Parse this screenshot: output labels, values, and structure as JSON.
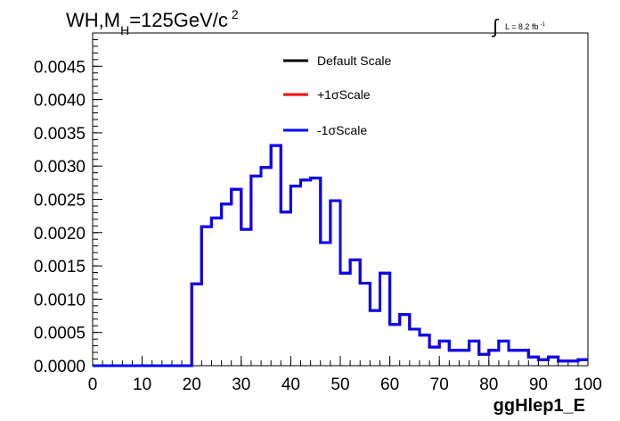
{
  "chart_data": {
    "type": "line",
    "title": "WH,M_H=125GeV/c^2",
    "title_parts": {
      "main": "WH,M",
      "sub": "H",
      "rest": "=125GeV/c",
      "sup": "2"
    },
    "lumi_label": {
      "integral": "∫",
      "text": "L = 8.2 fb",
      "sup": "-1"
    },
    "xlabel": "ggHlep1_E",
    "ylabel": "",
    "xlim": [
      0,
      100
    ],
    "ylim": [
      0,
      0.005
    ],
    "x_ticks": [
      0,
      10,
      20,
      30,
      40,
      50,
      60,
      70,
      80,
      90,
      100
    ],
    "y_ticks": [
      0.0,
      0.0005,
      0.001,
      0.0015,
      0.002,
      0.0025,
      0.003,
      0.0035,
      0.004,
      0.0045
    ],
    "y_tick_labels": [
      "0.0000",
      "0.0005",
      "0.0010",
      "0.0015",
      "0.0020",
      "0.0025",
      "0.0030",
      "0.0035",
      "0.0040",
      "0.0045"
    ],
    "grid": false,
    "legend_position": "top-center",
    "bin_edges": [
      0,
      2,
      4,
      6,
      8,
      10,
      12,
      14,
      16,
      18,
      20,
      22,
      24,
      26,
      28,
      30,
      32,
      34,
      36,
      38,
      40,
      42,
      44,
      46,
      48,
      50,
      52,
      54,
      56,
      58,
      60,
      62,
      64,
      66,
      68,
      70,
      72,
      74,
      76,
      78,
      80,
      82,
      84,
      86,
      88,
      90,
      92,
      94,
      96,
      98,
      100
    ],
    "series": [
      {
        "name": "Default Scale",
        "color": "#000000",
        "values": [
          0,
          0,
          0,
          0,
          0,
          0,
          0,
          0,
          0,
          0,
          0.00123,
          0.00209,
          0.00222,
          0.00243,
          0.00265,
          0.00205,
          0.00285,
          0.00298,
          0.00331,
          0.00231,
          0.0027,
          0.00279,
          0.00282,
          0.00185,
          0.00248,
          0.00139,
          0.00159,
          0.00124,
          0.00083,
          0.00139,
          0.00062,
          0.00077,
          0.00055,
          0.00046,
          0.00028,
          0.00037,
          0.00023,
          0.00023,
          0.00037,
          0.00017,
          0.00023,
          0.00037,
          0.00023,
          0.00023,
          0.00013,
          9e-05,
          0.00013,
          7e-05,
          7e-05,
          9e-05
        ]
      },
      {
        "name": "+1σScale",
        "color": "#ff0000",
        "values": [
          0,
          0,
          0,
          0,
          0,
          0,
          0,
          0,
          0,
          0,
          0.00123,
          0.00209,
          0.00222,
          0.00243,
          0.00265,
          0.00205,
          0.00285,
          0.00298,
          0.00331,
          0.00231,
          0.0027,
          0.00279,
          0.00282,
          0.00185,
          0.00248,
          0.00139,
          0.00159,
          0.00124,
          0.00083,
          0.00139,
          0.00062,
          0.00077,
          0.00055,
          0.00046,
          0.00028,
          0.00037,
          0.00023,
          0.00023,
          0.00037,
          0.00017,
          0.00023,
          0.00037,
          0.00023,
          0.00023,
          0.00013,
          9e-05,
          0.00013,
          7e-05,
          7e-05,
          9e-05
        ]
      },
      {
        "name": "-1σScale",
        "color": "#0000ff",
        "values": [
          0,
          0,
          0,
          0,
          0,
          0,
          0,
          0,
          0,
          0,
          0.00123,
          0.00209,
          0.00222,
          0.00243,
          0.00265,
          0.00205,
          0.00285,
          0.00298,
          0.00331,
          0.00231,
          0.0027,
          0.00279,
          0.00282,
          0.00185,
          0.00248,
          0.00139,
          0.00159,
          0.00124,
          0.00083,
          0.00139,
          0.00062,
          0.00077,
          0.00055,
          0.00046,
          0.00028,
          0.00037,
          0.00023,
          0.00023,
          0.00037,
          0.00017,
          0.00023,
          0.00037,
          0.00023,
          0.00023,
          0.00013,
          9e-05,
          0.00013,
          7e-05,
          7e-05,
          9e-05
        ]
      }
    ]
  }
}
